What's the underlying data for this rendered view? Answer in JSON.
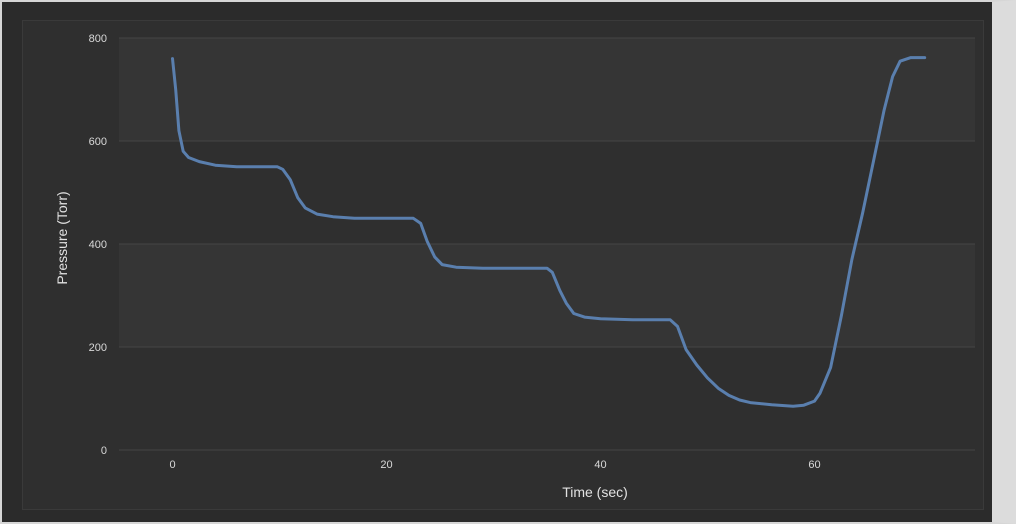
{
  "chart_data": {
    "type": "line",
    "title": "",
    "xlabel": "Time (sec)",
    "ylabel": "Pressure (Torr)",
    "xlim": [
      -5,
      75
    ],
    "ylim": [
      0,
      800
    ],
    "x_ticks": [
      0,
      20,
      40,
      60
    ],
    "y_ticks": [
      0,
      200,
      400,
      600,
      800
    ],
    "grid": "horizontal",
    "legend": "none",
    "colors": {
      "background": "#2b2b2b",
      "band": "#353535",
      "line": "#5a7fae",
      "grid": "#454545"
    },
    "series": [
      {
        "values_xy": [
          [
            0,
            760
          ],
          [
            0.3,
            700
          ],
          [
            0.6,
            620
          ],
          [
            1,
            580
          ],
          [
            1.5,
            568
          ],
          [
            2.5,
            560
          ],
          [
            4,
            553
          ],
          [
            6,
            550
          ],
          [
            8,
            550
          ],
          [
            9.8,
            550
          ],
          [
            10.3,
            545
          ],
          [
            11,
            525
          ],
          [
            11.7,
            490
          ],
          [
            12.4,
            470
          ],
          [
            13.5,
            458
          ],
          [
            15,
            453
          ],
          [
            17,
            450
          ],
          [
            20,
            450
          ],
          [
            22.5,
            450
          ],
          [
            23.2,
            440
          ],
          [
            23.8,
            405
          ],
          [
            24.5,
            375
          ],
          [
            25.2,
            360
          ],
          [
            26.5,
            355
          ],
          [
            29,
            353
          ],
          [
            32,
            353
          ],
          [
            35,
            353
          ],
          [
            35.5,
            345
          ],
          [
            36.2,
            310
          ],
          [
            36.8,
            285
          ],
          [
            37.5,
            265
          ],
          [
            38.5,
            258
          ],
          [
            40,
            255
          ],
          [
            43,
            253
          ],
          [
            46.5,
            253
          ],
          [
            47.2,
            240
          ],
          [
            48,
            195
          ],
          [
            49,
            165
          ],
          [
            50,
            140
          ],
          [
            51,
            120
          ],
          [
            52,
            106
          ],
          [
            53,
            97
          ],
          [
            54,
            92
          ],
          [
            56,
            88
          ],
          [
            58,
            85
          ],
          [
            59,
            87
          ],
          [
            60,
            95
          ],
          [
            60.5,
            110
          ],
          [
            61.5,
            160
          ],
          [
            62.5,
            260
          ],
          [
            63.5,
            370
          ],
          [
            64.5,
            460
          ],
          [
            65.5,
            560
          ],
          [
            66.5,
            660
          ],
          [
            67.3,
            725
          ],
          [
            68,
            755
          ],
          [
            69,
            762
          ],
          [
            70.3,
            762
          ]
        ]
      }
    ]
  }
}
